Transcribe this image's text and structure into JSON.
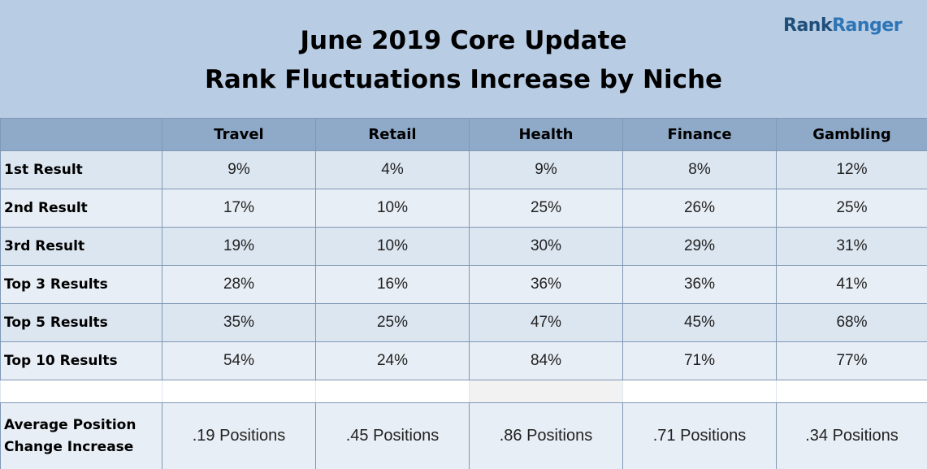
{
  "header": {
    "title_line1": "June 2019 Core Update",
    "title_line2": "Rank Fluctuations Increase by Niche",
    "logo_part1": "Rank",
    "logo_part2": "Ranger"
  },
  "chart_data": {
    "type": "table",
    "title": "June 2019 Core Update Rank Fluctuations Increase by Niche",
    "columns": [
      "",
      "Travel",
      "Retail",
      "Health",
      "Finance",
      "Gambling"
    ],
    "rows": [
      {
        "label": "1st Result",
        "values": [
          "9%",
          "4%",
          "9%",
          "8%",
          "12%"
        ]
      },
      {
        "label": "2nd Result",
        "values": [
          "17%",
          "10%",
          "25%",
          "26%",
          "25%"
        ]
      },
      {
        "label": "3rd Result",
        "values": [
          "19%",
          "10%",
          "30%",
          "29%",
          "31%"
        ]
      },
      {
        "label": "Top 3 Results",
        "values": [
          "28%",
          "16%",
          "36%",
          "36%",
          "41%"
        ]
      },
      {
        "label": "Top 5 Results",
        "values": [
          "35%",
          "25%",
          "47%",
          "45%",
          "68%"
        ]
      },
      {
        "label": "Top 10 Results",
        "values": [
          "54%",
          "24%",
          "84%",
          "71%",
          "77%"
        ]
      }
    ],
    "summary_row": {
      "label_line1": "Average Position",
      "label_line2": "Change Increase",
      "values": [
        ".19 Positions",
        ".45 Positions",
        ".86 Positions",
        ".71 Positions",
        ".34 Positions"
      ]
    }
  }
}
